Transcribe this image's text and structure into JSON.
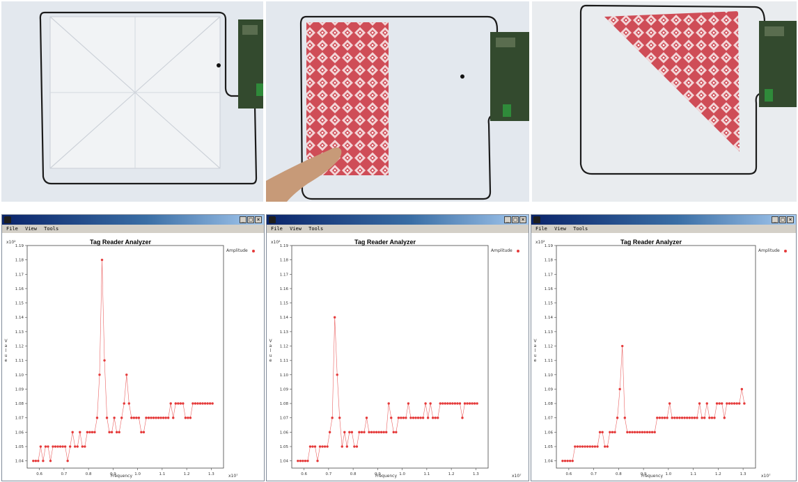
{
  "windows": [
    {
      "title": "Tag Reader Analyzer",
      "menu": [
        "File",
        "View",
        "Tools"
      ],
      "buttons": [
        "_",
        "□",
        "×"
      ],
      "legend": "Amplitude",
      "xlabel": "Frequency",
      "ylabel": "Value",
      "x_exp": "x10⁷",
      "y_exp": "x10²"
    },
    {
      "title": "Tag Reader Analyzer",
      "menu": [
        "File",
        "View",
        "Tools"
      ],
      "buttons": [
        "_",
        "□",
        "×"
      ],
      "legend": "Amplitude",
      "xlabel": "Frequency",
      "ylabel": "Value",
      "x_exp": "x10⁷",
      "y_exp": "x10²"
    },
    {
      "title": "Tag Reader Analyzer",
      "menu": [
        "File",
        "View",
        "Tools"
      ],
      "buttons": [
        "_",
        "□",
        "×"
      ],
      "legend": "Amplitude",
      "xlabel": "Frequency",
      "ylabel": "Value",
      "x_exp": "x10⁷",
      "y_exp": "x10²"
    }
  ],
  "colors": {
    "series": "#e53b3b",
    "titlebar": "#0a246a"
  },
  "chart_data": [
    {
      "type": "line",
      "title": "Tag Reader Analyzer",
      "xlabel": "Frequency",
      "ylabel": "Value",
      "xlim": [
        0.55,
        1.35
      ],
      "ylim": [
        1.035,
        1.19
      ],
      "xticks": [
        "0.6",
        "0.7",
        "0.8",
        "0.9",
        "1.0",
        "1.1",
        "1.2",
        "1.3"
      ],
      "yticks": [
        "1.04",
        "1.05",
        "1.06",
        "1.07",
        "1.08",
        "1.09",
        "1.10",
        "1.11",
        "1.12",
        "1.13",
        "1.14",
        "1.15",
        "1.16",
        "1.17",
        "1.18",
        "1.19"
      ],
      "series": [
        {
          "name": "Amplitude",
          "x": [
            0.575,
            0.585,
            0.595,
            0.605,
            0.615,
            0.625,
            0.635,
            0.645,
            0.655,
            0.665,
            0.675,
            0.685,
            0.695,
            0.705,
            0.715,
            0.725,
            0.735,
            0.745,
            0.755,
            0.765,
            0.775,
            0.785,
            0.795,
            0.805,
            0.815,
            0.825,
            0.835,
            0.845,
            0.855,
            0.865,
            0.875,
            0.885,
            0.895,
            0.905,
            0.915,
            0.925,
            0.935,
            0.945,
            0.955,
            0.965,
            0.975,
            0.985,
            0.995,
            1.005,
            1.015,
            1.025,
            1.035,
            1.045,
            1.055,
            1.065,
            1.075,
            1.085,
            1.095,
            1.105,
            1.115,
            1.125,
            1.135,
            1.145,
            1.155,
            1.165,
            1.175,
            1.185,
            1.195,
            1.205,
            1.215,
            1.225,
            1.235,
            1.245,
            1.255,
            1.265,
            1.275,
            1.285,
            1.295,
            1.305
          ],
          "values": [
            1.04,
            1.04,
            1.04,
            1.05,
            1.04,
            1.05,
            1.05,
            1.04,
            1.05,
            1.05,
            1.05,
            1.05,
            1.05,
            1.05,
            1.04,
            1.05,
            1.06,
            1.05,
            1.05,
            1.06,
            1.05,
            1.05,
            1.06,
            1.06,
            1.06,
            1.06,
            1.07,
            1.1,
            1.18,
            1.11,
            1.07,
            1.06,
            1.06,
            1.07,
            1.06,
            1.06,
            1.07,
            1.08,
            1.1,
            1.08,
            1.07,
            1.07,
            1.07,
            1.07,
            1.06,
            1.06,
            1.07,
            1.07,
            1.07,
            1.07,
            1.07,
            1.07,
            1.07,
            1.07,
            1.07,
            1.07,
            1.08,
            1.07,
            1.08,
            1.08,
            1.08,
            1.08,
            1.07,
            1.07,
            1.07,
            1.08,
            1.08,
            1.08,
            1.08,
            1.08,
            1.08,
            1.08,
            1.08,
            1.08
          ]
        }
      ]
    },
    {
      "type": "line",
      "title": "Tag Reader Analyzer",
      "xlabel": "Frequency",
      "ylabel": "Value",
      "xlim": [
        0.55,
        1.35
      ],
      "ylim": [
        1.035,
        1.19
      ],
      "xticks": [
        "0.6",
        "0.7",
        "0.8",
        "0.9",
        "1.0",
        "1.1",
        "1.2",
        "1.3"
      ],
      "yticks": [
        "1.04",
        "1.05",
        "1.06",
        "1.07",
        "1.08",
        "1.09",
        "1.10",
        "1.11",
        "1.12",
        "1.13",
        "1.14",
        "1.15",
        "1.16",
        "1.17",
        "1.18",
        "1.19"
      ],
      "series": [
        {
          "name": "Amplitude",
          "x": [
            0.575,
            0.585,
            0.595,
            0.605,
            0.615,
            0.625,
            0.635,
            0.645,
            0.655,
            0.665,
            0.675,
            0.685,
            0.695,
            0.705,
            0.715,
            0.725,
            0.735,
            0.745,
            0.755,
            0.765,
            0.775,
            0.785,
            0.795,
            0.805,
            0.815,
            0.825,
            0.835,
            0.845,
            0.855,
            0.865,
            0.875,
            0.885,
            0.895,
            0.905,
            0.915,
            0.925,
            0.935,
            0.945,
            0.955,
            0.965,
            0.975,
            0.985,
            0.995,
            1.005,
            1.015,
            1.025,
            1.035,
            1.045,
            1.055,
            1.065,
            1.075,
            1.085,
            1.095,
            1.105,
            1.115,
            1.125,
            1.135,
            1.145,
            1.155,
            1.165,
            1.175,
            1.185,
            1.195,
            1.205,
            1.215,
            1.225,
            1.235,
            1.245,
            1.255,
            1.265,
            1.275,
            1.285,
            1.295,
            1.305
          ],
          "values": [
            1.04,
            1.04,
            1.04,
            1.04,
            1.04,
            1.05,
            1.05,
            1.05,
            1.04,
            1.05,
            1.05,
            1.05,
            1.05,
            1.06,
            1.07,
            1.14,
            1.1,
            1.07,
            1.05,
            1.06,
            1.05,
            1.06,
            1.06,
            1.05,
            1.05,
            1.06,
            1.06,
            1.06,
            1.07,
            1.06,
            1.06,
            1.06,
            1.06,
            1.06,
            1.06,
            1.06,
            1.06,
            1.08,
            1.07,
            1.06,
            1.06,
            1.07,
            1.07,
            1.07,
            1.07,
            1.08,
            1.07,
            1.07,
            1.07,
            1.07,
            1.07,
            1.07,
            1.08,
            1.07,
            1.08,
            1.07,
            1.07,
            1.07,
            1.08,
            1.08,
            1.08,
            1.08,
            1.08,
            1.08,
            1.08,
            1.08,
            1.08,
            1.07,
            1.08,
            1.08,
            1.08,
            1.08,
            1.08,
            1.08
          ]
        }
      ]
    },
    {
      "type": "line",
      "title": "Tag Reader Analyzer",
      "xlabel": "Frequency",
      "ylabel": "Value",
      "xlim": [
        0.55,
        1.35
      ],
      "ylim": [
        1.035,
        1.19
      ],
      "xticks": [
        "0.6",
        "0.7",
        "0.8",
        "0.9",
        "1.0",
        "1.1",
        "1.2",
        "1.3"
      ],
      "yticks": [
        "1.04",
        "1.05",
        "1.06",
        "1.07",
        "1.08",
        "1.09",
        "1.10",
        "1.11",
        "1.12",
        "1.13",
        "1.14",
        "1.15",
        "1.16",
        "1.17",
        "1.18",
        "1.19"
      ],
      "series": [
        {
          "name": "Amplitude",
          "x": [
            0.575,
            0.585,
            0.595,
            0.605,
            0.615,
            0.625,
            0.635,
            0.645,
            0.655,
            0.665,
            0.675,
            0.685,
            0.695,
            0.705,
            0.715,
            0.725,
            0.735,
            0.745,
            0.755,
            0.765,
            0.775,
            0.785,
            0.795,
            0.805,
            0.815,
            0.825,
            0.835,
            0.845,
            0.855,
            0.865,
            0.875,
            0.885,
            0.895,
            0.905,
            0.915,
            0.925,
            0.935,
            0.945,
            0.955,
            0.965,
            0.975,
            0.985,
            0.995,
            1.005,
            1.015,
            1.025,
            1.035,
            1.045,
            1.055,
            1.065,
            1.075,
            1.085,
            1.095,
            1.105,
            1.115,
            1.125,
            1.135,
            1.145,
            1.155,
            1.165,
            1.175,
            1.185,
            1.195,
            1.205,
            1.215,
            1.225,
            1.235,
            1.245,
            1.255,
            1.265,
            1.275,
            1.285,
            1.295,
            1.305
          ],
          "values": [
            1.04,
            1.04,
            1.04,
            1.04,
            1.04,
            1.05,
            1.05,
            1.05,
            1.05,
            1.05,
            1.05,
            1.05,
            1.05,
            1.05,
            1.05,
            1.06,
            1.06,
            1.05,
            1.05,
            1.06,
            1.06,
            1.06,
            1.07,
            1.09,
            1.12,
            1.07,
            1.06,
            1.06,
            1.06,
            1.06,
            1.06,
            1.06,
            1.06,
            1.06,
            1.06,
            1.06,
            1.06,
            1.06,
            1.07,
            1.07,
            1.07,
            1.07,
            1.07,
            1.08,
            1.07,
            1.07,
            1.07,
            1.07,
            1.07,
            1.07,
            1.07,
            1.07,
            1.07,
            1.07,
            1.07,
            1.08,
            1.07,
            1.07,
            1.08,
            1.07,
            1.07,
            1.07,
            1.08,
            1.08,
            1.08,
            1.07,
            1.08,
            1.08,
            1.08,
            1.08,
            1.08,
            1.08,
            1.09,
            1.08
          ]
        }
      ]
    }
  ]
}
